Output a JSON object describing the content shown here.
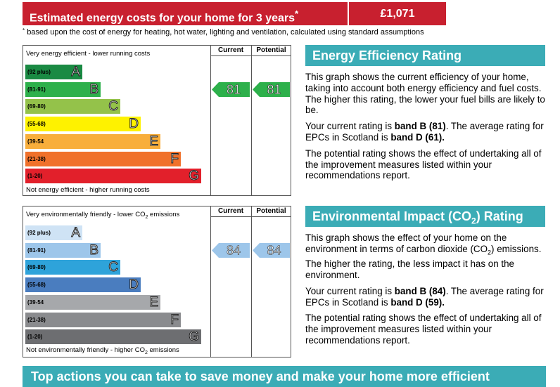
{
  "cost": {
    "label": "Estimated energy costs for your home for 3 years",
    "label_marker": "*",
    "value": "£1,071",
    "footnote_marker": "*",
    "footnote": "based upon the cost of energy for heating, hot water, lighting and ventilation, calculated using standard assumptions"
  },
  "energy_chart": {
    "col_current": "Current",
    "col_potential": "Potential",
    "top_label": "Very energy efficient - lower running costs",
    "bottom_label": "Not energy efficient - higher running costs",
    "bands": [
      {
        "range": "(92 plus)",
        "letter": "A",
        "color": "#1a8a43",
        "fill": 0.31
      },
      {
        "range": "(81-91)",
        "letter": "B",
        "color": "#2db04b",
        "fill": 0.41
      },
      {
        "range": "(69-80)",
        "letter": "C",
        "color": "#94c24a",
        "fill": 0.52
      },
      {
        "range": "(55-68)",
        "letter": "D",
        "color": "#fef200",
        "fill": 0.63
      },
      {
        "range": "(39-54",
        "letter": "E",
        "color": "#f8ae3b",
        "fill": 0.74
      },
      {
        "range": "(21-38)",
        "letter": "F",
        "color": "#f0712b",
        "fill": 0.85
      },
      {
        "range": "(1-20)",
        "letter": "G",
        "color": "#e2202b",
        "fill": 0.96
      }
    ],
    "current": {
      "value": "81",
      "band": "B",
      "color": "#2db04b"
    },
    "potential": {
      "value": "81",
      "band": "B",
      "color": "#2db04b"
    }
  },
  "energy_panel": {
    "title": "Energy Efficiency Rating",
    "para1": "This graph shows the current efficiency of your home, taking into account both energy efficiency and fuel costs. The higher this rating, the lower your fuel bills are likely to be.",
    "para2_pre": "Your current rating is ",
    "para2_bold1": "band B (81)",
    "para2_mid": ". The average rating for EPCs in Scotland is ",
    "para2_bold2": "band D (61).",
    "para3": "The potential rating shows the effect of undertaking all of the improvement measures listed within your recommendations report."
  },
  "env_chart": {
    "col_current": "Current",
    "col_potential": "Potential",
    "top_label_pre": "Very environmentally friendly - lower CO",
    "top_label_sub": "2",
    "top_label_post": " emissions",
    "bottom_label_pre": "Not environmentally friendly - higher CO",
    "bottom_label_sub": "2",
    "bottom_label_post": " emissions",
    "bands": [
      {
        "range": "(92 plus)",
        "letter": "A",
        "color": "#cfe3f5",
        "fill": 0.31
      },
      {
        "range": "(81-91)",
        "letter": "B",
        "color": "#9dc6ea",
        "fill": 0.41
      },
      {
        "range": "(69-80)",
        "letter": "C",
        "color": "#2ea3da",
        "fill": 0.52
      },
      {
        "range": "(55-68)",
        "letter": "D",
        "color": "#4a7dbf",
        "fill": 0.63
      },
      {
        "range": "(39-54",
        "letter": "E",
        "color": "#a6a8ab",
        "fill": 0.74
      },
      {
        "range": "(21-38)",
        "letter": "F",
        "color": "#8a8b8e",
        "fill": 0.85
      },
      {
        "range": "(1-20)",
        "letter": "G",
        "color": "#6d6e71",
        "fill": 0.96
      }
    ],
    "current": {
      "value": "84",
      "band": "B",
      "color": "#9dc6ea"
    },
    "potential": {
      "value": "84",
      "band": "B",
      "color": "#9dc6ea"
    }
  },
  "env_panel": {
    "title_pre": "Environmental Impact (CO",
    "title_sub": "2",
    "title_post": ") Rating",
    "para1_pre": "This graph shows the effect of your home on the environment in terms of carbon dioxide (CO",
    "para1_sub": "2",
    "para1_post": ") emissions. The higher the rating, the less impact it has on the environment.",
    "para2_pre": "Your current rating is ",
    "para2_bold1": "band B (84)",
    "para2_mid": ". The average rating for EPCs in Scotland is ",
    "para2_bold2": "band D (59).",
    "para3": "The potential rating shows the effect of undertaking all of the improvement measures listed within your recommendations report."
  },
  "bottom_banner": "Top actions you can take to save money and make your home more efficient"
}
